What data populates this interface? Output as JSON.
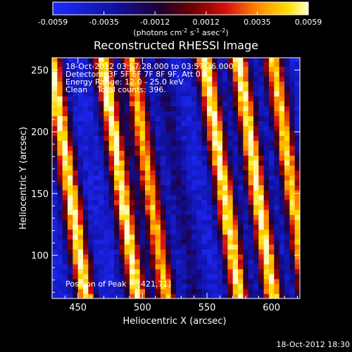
{
  "chart_data": {
    "type": "heatmap",
    "title": "Reconstructed RHESSI Image",
    "xlabel": "Heliocentric X (arcsec)",
    "ylabel": "Heliocentric Y (arcsec)",
    "xlim": [
      430,
      622
    ],
    "ylim": [
      65,
      260
    ],
    "x_ticks": [
      450,
      500,
      550,
      600
    ],
    "y_ticks": [
      100,
      150,
      200,
      250
    ],
    "colorbar": {
      "ticks": [
        "-0.0059",
        "-0.0035",
        "-0.0012",
        "0.0012",
        "0.0035",
        "0.0059"
      ],
      "min": -0.0059,
      "max": 0.0059,
      "unit_label_parts": [
        "(photons cm",
        "-2",
        " s",
        "-1",
        " asec",
        "-2",
        ")"
      ]
    },
    "annotations": [
      "18-Oct-2012 03:57:28.000 to 03:57:36.000",
      "Detectors: 3F 5F 6F 7F 8F 9F, Att 0",
      "Energy Range: 12.0 - 25.0 keV",
      "Clean    Total counts: 396."
    ],
    "peak_label": "Position of Peak = [421,71]",
    "stripe_model": {
      "description_units": "arcsec",
      "stripe_centers_at_y_ref": [
        443,
        483,
        505,
        528,
        562,
        588,
        615
      ],
      "stripe_amplitudes": [
        0.0059,
        0.0059,
        0.0045,
        -0.002,
        0.0059,
        0.0059,
        0.005
      ],
      "stripe_width_arcsec": 7.5,
      "tilt_arcsec_x_per_arcsec_y": 0.14,
      "y_ref": 160,
      "background": -0.0045
    }
  },
  "footer": {
    "timestamp": "18-Oct-2012 18:30"
  }
}
